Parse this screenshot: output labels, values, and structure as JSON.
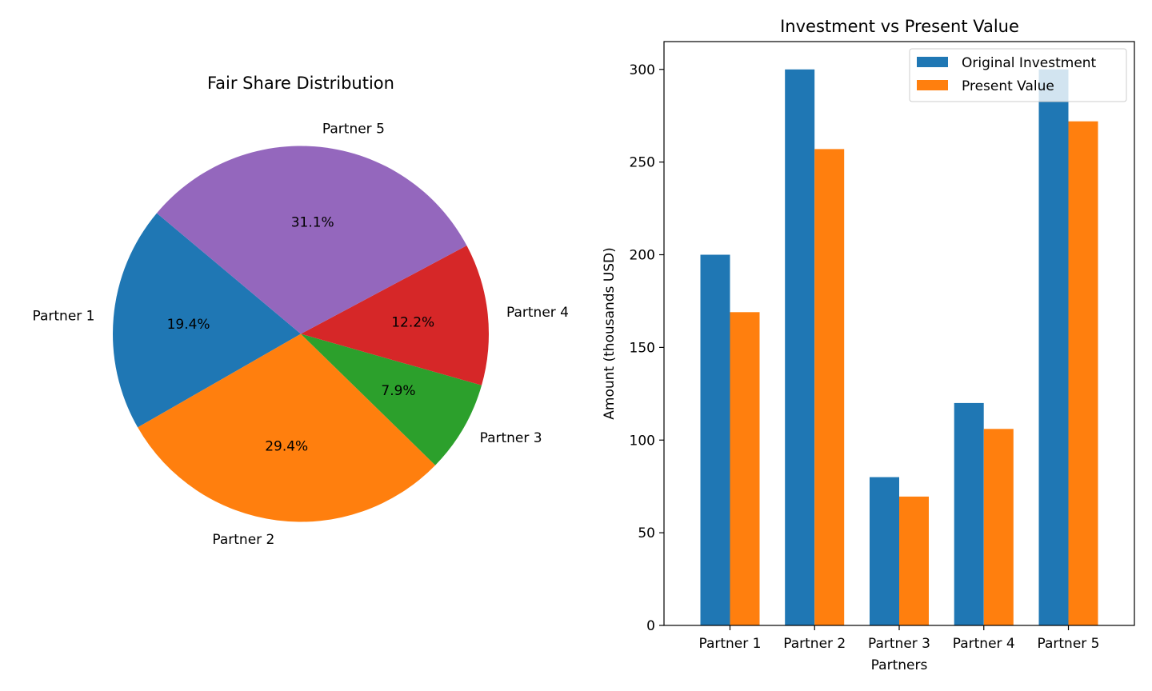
{
  "colors": {
    "blue": "#1f77b4",
    "orange": "#ff7f0e",
    "green": "#2ca02c",
    "red": "#d62728",
    "purple": "#9467bd"
  },
  "chart_data": [
    {
      "type": "pie",
      "title": "Fair Share Distribution",
      "slices": [
        {
          "label": "Partner 1",
          "value": 19.4,
          "pct_label": "19.4%",
          "color": "#1f77b4"
        },
        {
          "label": "Partner 2",
          "value": 29.4,
          "pct_label": "29.4%",
          "color": "#ff7f0e"
        },
        {
          "label": "Partner 3",
          "value": 7.9,
          "pct_label": "7.9%",
          "color": "#2ca02c"
        },
        {
          "label": "Partner 4",
          "value": 12.2,
          "pct_label": "12.2%",
          "color": "#d62728"
        },
        {
          "label": "Partner 5",
          "value": 31.1,
          "pct_label": "31.1%",
          "color": "#9467bd"
        }
      ]
    },
    {
      "type": "bar",
      "title": "Investment vs Present Value",
      "xlabel": "Partners",
      "ylabel": "Amount (thousands USD)",
      "categories": [
        "Partner 1",
        "Partner 2",
        "Partner 3",
        "Partner 4",
        "Partner 5"
      ],
      "ylim": [
        0,
        315
      ],
      "yticks": [
        0,
        50,
        100,
        150,
        200,
        250,
        300
      ],
      "legend_position": "top-right",
      "series": [
        {
          "name": "Original Investment",
          "color": "#1f77b4",
          "values": [
            200,
            300,
            80,
            120,
            300
          ]
        },
        {
          "name": "Present Value",
          "color": "#ff7f0e",
          "values": [
            169,
            257,
            69.5,
            106,
            272
          ]
        }
      ]
    }
  ]
}
